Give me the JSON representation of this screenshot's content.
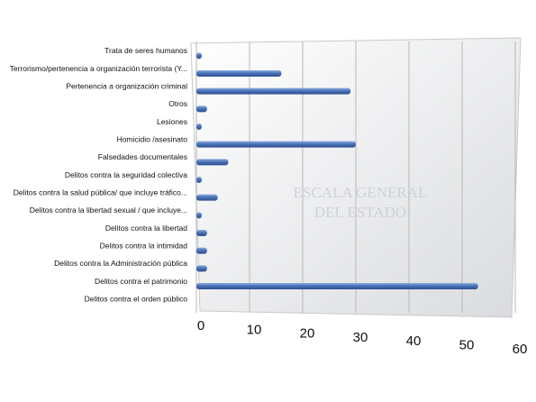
{
  "chart_data": {
    "type": "bar",
    "orientation": "horizontal",
    "categories": [
      "Trata de seres humanos",
      "Terrorismo/pertenencia a organización terrorista (Y...",
      "Pertenencia a organización criminal",
      "Otros",
      "Lesiones",
      "Homicidio /asesinato",
      "Falsedades documentales",
      "Delitos contra la seguridad colectiva",
      "Delitos contra la salud pública/ que incluye tráfico...",
      "Delitos contra la libertad sexual / que incluye...",
      "Delitos contra la libertad",
      "Delitos contra la intimidad",
      "Delitos contra la Administración pública",
      "Delitos contra el patrimonio",
      "Delitos contra el orden público"
    ],
    "values": [
      1,
      16,
      29,
      2,
      1,
      30,
      6,
      1,
      4,
      1,
      2,
      2,
      2,
      53,
      0
    ],
    "color": "#4a72b8",
    "xlim": [
      0,
      60
    ],
    "xticks": [
      0,
      10,
      20,
      30,
      40,
      50,
      60
    ],
    "grid": true,
    "watermark": [
      "ESCALA GENERAL",
      "DEL ESTADO"
    ]
  }
}
